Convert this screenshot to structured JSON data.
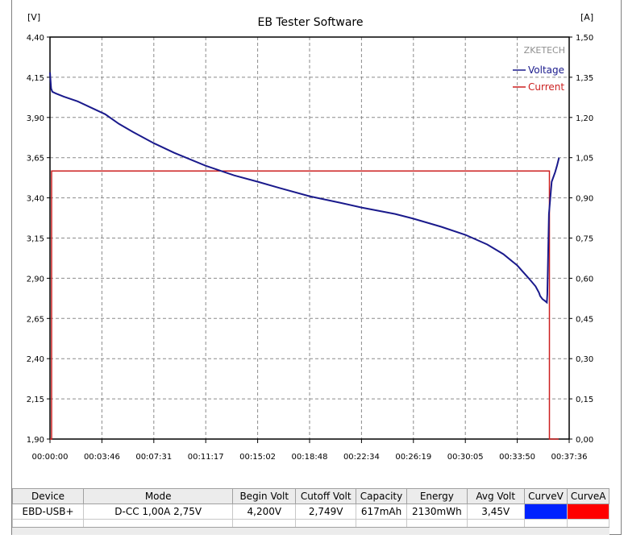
{
  "app": {
    "title": "EB Tester Software",
    "watermark": "ZKETECH"
  },
  "colors": {
    "voltage": "#1a1a8c",
    "current": "#cc2020",
    "curve_v_swatch": "#0022ff",
    "curve_a_swatch": "#ff0000",
    "grid": "#8a8a8a"
  },
  "chart_data": {
    "type": "line",
    "title": "EB Tester Software",
    "y_left_unit": "[V]",
    "y_right_unit": "[A]",
    "y_left_ticks": [
      "4,40",
      "4,15",
      "3,90",
      "3,65",
      "3,40",
      "3,15",
      "2,90",
      "2,65",
      "2,40",
      "2,15",
      "1,90"
    ],
    "y_right_ticks": [
      "1,50",
      "1,35",
      "1,20",
      "1,05",
      "0,90",
      "0,75",
      "0,60",
      "0,45",
      "0,30",
      "0,15",
      "0,00"
    ],
    "x_ticks": [
      "00:00:00",
      "00:03:46",
      "00:07:31",
      "00:11:17",
      "00:15:02",
      "00:18:48",
      "00:22:34",
      "00:26:19",
      "00:30:05",
      "00:33:50",
      "00:37:36"
    ],
    "ylim_left": [
      1.9,
      4.4
    ],
    "ylim_right": [
      0.0,
      1.5
    ],
    "xlim_seconds": [
      0,
      2256
    ],
    "grid": true,
    "legend_position": "top-right",
    "series": [
      {
        "name": "Voltage",
        "axis": "left",
        "x_seconds": [
          0,
          5,
          10,
          25,
          60,
          120,
          180,
          240,
          300,
          360,
          451,
          540,
          676,
          800,
          903,
          1000,
          1128,
          1260,
          1354,
          1500,
          1580,
          1700,
          1805,
          1900,
          1970,
          2030,
          2080,
          2110,
          2125,
          2130,
          2140,
          2150,
          2159,
          2161,
          2164,
          2168,
          2180,
          2195,
          2203,
          2212
        ],
        "values": [
          4.18,
          4.08,
          4.06,
          4.05,
          4.03,
          4.0,
          3.96,
          3.92,
          3.86,
          3.81,
          3.74,
          3.68,
          3.6,
          3.54,
          3.5,
          3.46,
          3.41,
          3.37,
          3.34,
          3.3,
          3.27,
          3.22,
          3.17,
          3.11,
          3.05,
          2.98,
          2.9,
          2.85,
          2.81,
          2.79,
          2.77,
          2.76,
          2.749,
          2.8,
          3.0,
          3.3,
          3.5,
          3.56,
          3.6,
          3.65
        ]
      },
      {
        "name": "Current",
        "axis": "right",
        "x_seconds": [
          0,
          0,
          7,
          7,
          2170,
          2170,
          2210
        ],
        "values": [
          0.0,
          0.0,
          0.0,
          1.0,
          1.0,
          0.0,
          0.0
        ]
      }
    ]
  },
  "table": {
    "headers": [
      "Device",
      "Mode",
      "Begin Volt",
      "Cutoff Volt",
      "Capacity",
      "Energy",
      "Avg Volt",
      "CurveV",
      "CurveA"
    ],
    "row": {
      "device": "EBD-USB+",
      "mode": "D-CC  1,00A  2,75V",
      "begin_volt": "4,200V",
      "cutoff_volt": "2,749V",
      "capacity": "617mAh",
      "energy": "2130mWh",
      "avg_volt": "3,45V"
    }
  }
}
